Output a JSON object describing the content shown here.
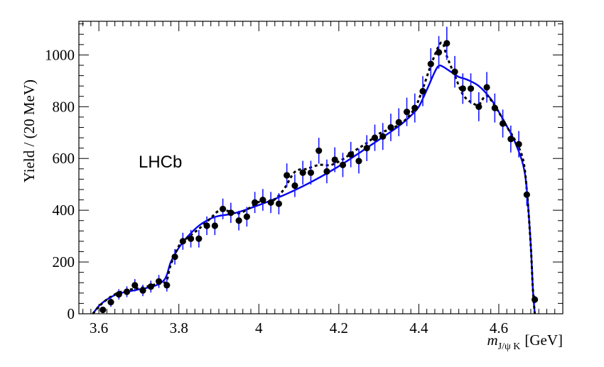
{
  "chart_data": {
    "type": "scatter",
    "title": "",
    "annotation": "LHCb",
    "xlabel": {
      "symbol": "m",
      "subscript": "J/ψ K",
      "unit": "[GeV]"
    },
    "ylabel": "Yield / (20 MeV)",
    "xlim": [
      3.55,
      4.76
    ],
    "ylim": [
      0,
      1130
    ],
    "x_ticks": [
      3.6,
      3.8,
      4,
      4.2,
      4.4,
      4.6
    ],
    "x_tick_labels": [
      "3.6",
      "3.8",
      "4",
      "4.2",
      "4.4",
      "4.6"
    ],
    "y_ticks": [
      0,
      200,
      400,
      600,
      800,
      1000
    ],
    "y_tick_labels": [
      "0",
      "200",
      "400",
      "600",
      "800",
      "1000"
    ],
    "grid": false,
    "colors": {
      "data": "#000000",
      "error_bar": "#1a1aff",
      "fit_solid": "#0000ee",
      "fit_dashed": "#000000"
    },
    "series": [
      {
        "kind": "data_points",
        "x": [
          3.61,
          3.63,
          3.65,
          3.67,
          3.69,
          3.71,
          3.73,
          3.75,
          3.77,
          3.79,
          3.81,
          3.83,
          3.85,
          3.87,
          3.89,
          3.91,
          3.93,
          3.95,
          3.97,
          3.99,
          4.01,
          4.03,
          4.05,
          4.07,
          4.09,
          4.11,
          4.13,
          4.15,
          4.17,
          4.19,
          4.21,
          4.23,
          4.25,
          4.27,
          4.29,
          4.31,
          4.33,
          4.35,
          4.37,
          4.39,
          4.41,
          4.43,
          4.45,
          4.47,
          4.49,
          4.51,
          4.53,
          4.55,
          4.57,
          4.59,
          4.61,
          4.63,
          4.65,
          4.67,
          4.69
        ],
        "y": [
          15,
          45,
          75,
          85,
          110,
          90,
          105,
          125,
          110,
          220,
          280,
          290,
          290,
          340,
          340,
          405,
          390,
          360,
          375,
          430,
          440,
          430,
          425,
          535,
          495,
          545,
          545,
          630,
          550,
          595,
          575,
          615,
          590,
          640,
          680,
          685,
          720,
          740,
          780,
          795,
          860,
          965,
          1010,
          1045,
          935,
          870,
          870,
          800,
          875,
          795,
          735,
          675,
          655,
          460,
          55
        ],
        "err": [
          12,
          18,
          20,
          21,
          24,
          22,
          23,
          25,
          24,
          30,
          33,
          34,
          34,
          36,
          36,
          40,
          39,
          38,
          38,
          41,
          42,
          41,
          41,
          46,
          44,
          46,
          46,
          50,
          46,
          48,
          47,
          49,
          48,
          50,
          51,
          52,
          53,
          54,
          55,
          56,
          58,
          61,
          63,
          64,
          61,
          59,
          59,
          56,
          59,
          56,
          54,
          52,
          51,
          43,
          15
        ]
      },
      {
        "kind": "fit",
        "style": "solid",
        "x": [
          3.585,
          3.6,
          3.62,
          3.64,
          3.66,
          3.68,
          3.7,
          3.72,
          3.74,
          3.76,
          3.77,
          3.78,
          3.8,
          3.82,
          3.85,
          3.88,
          3.9,
          3.93,
          3.96,
          4.0,
          4.05,
          4.1,
          4.15,
          4.2,
          4.25,
          4.3,
          4.35,
          4.38,
          4.4,
          4.42,
          4.44,
          4.45,
          4.46,
          4.48,
          4.5,
          4.52,
          4.55,
          4.58,
          4.6,
          4.62,
          4.64,
          4.66,
          4.67,
          4.68,
          4.685,
          4.69
        ],
        "y": [
          0,
          30,
          55,
          72,
          82,
          88,
          94,
          100,
          108,
          125,
          150,
          200,
          255,
          295,
          340,
          368,
          378,
          385,
          398,
          420,
          450,
          485,
          525,
          570,
          620,
          672,
          725,
          765,
          800,
          865,
          935,
          958,
          955,
          935,
          915,
          905,
          880,
          830,
          780,
          725,
          665,
          580,
          480,
          260,
          100,
          0
        ]
      },
      {
        "kind": "fit",
        "style": "dashed",
        "x": [
          3.585,
          3.6,
          3.62,
          3.64,
          3.66,
          3.68,
          3.7,
          3.72,
          3.74,
          3.76,
          3.77,
          3.78,
          3.8,
          3.82,
          3.85,
          3.88,
          3.9,
          3.92,
          3.95,
          3.98,
          4.0,
          4.03,
          4.06,
          4.09,
          4.12,
          4.15,
          4.18,
          4.21,
          4.24,
          4.27,
          4.3,
          4.33,
          4.36,
          4.39,
          4.41,
          4.43,
          4.45,
          4.46,
          4.47,
          4.49,
          4.51,
          4.53,
          4.55,
          4.57,
          4.6,
          4.62,
          4.64,
          4.66,
          4.67,
          4.68,
          4.685,
          4.69
        ],
        "y": [
          0,
          28,
          55,
          75,
          87,
          94,
          99,
          105,
          113,
          118,
          130,
          190,
          262,
          292,
          328,
          370,
          398,
          398,
          388,
          412,
          432,
          432,
          475,
          548,
          560,
          575,
          575,
          597,
          630,
          660,
          695,
          715,
          740,
          795,
          870,
          960,
          1035,
          1045,
          995,
          920,
          848,
          818,
          808,
          842,
          778,
          723,
          672,
          600,
          480,
          260,
          100,
          0
        ]
      }
    ]
  }
}
